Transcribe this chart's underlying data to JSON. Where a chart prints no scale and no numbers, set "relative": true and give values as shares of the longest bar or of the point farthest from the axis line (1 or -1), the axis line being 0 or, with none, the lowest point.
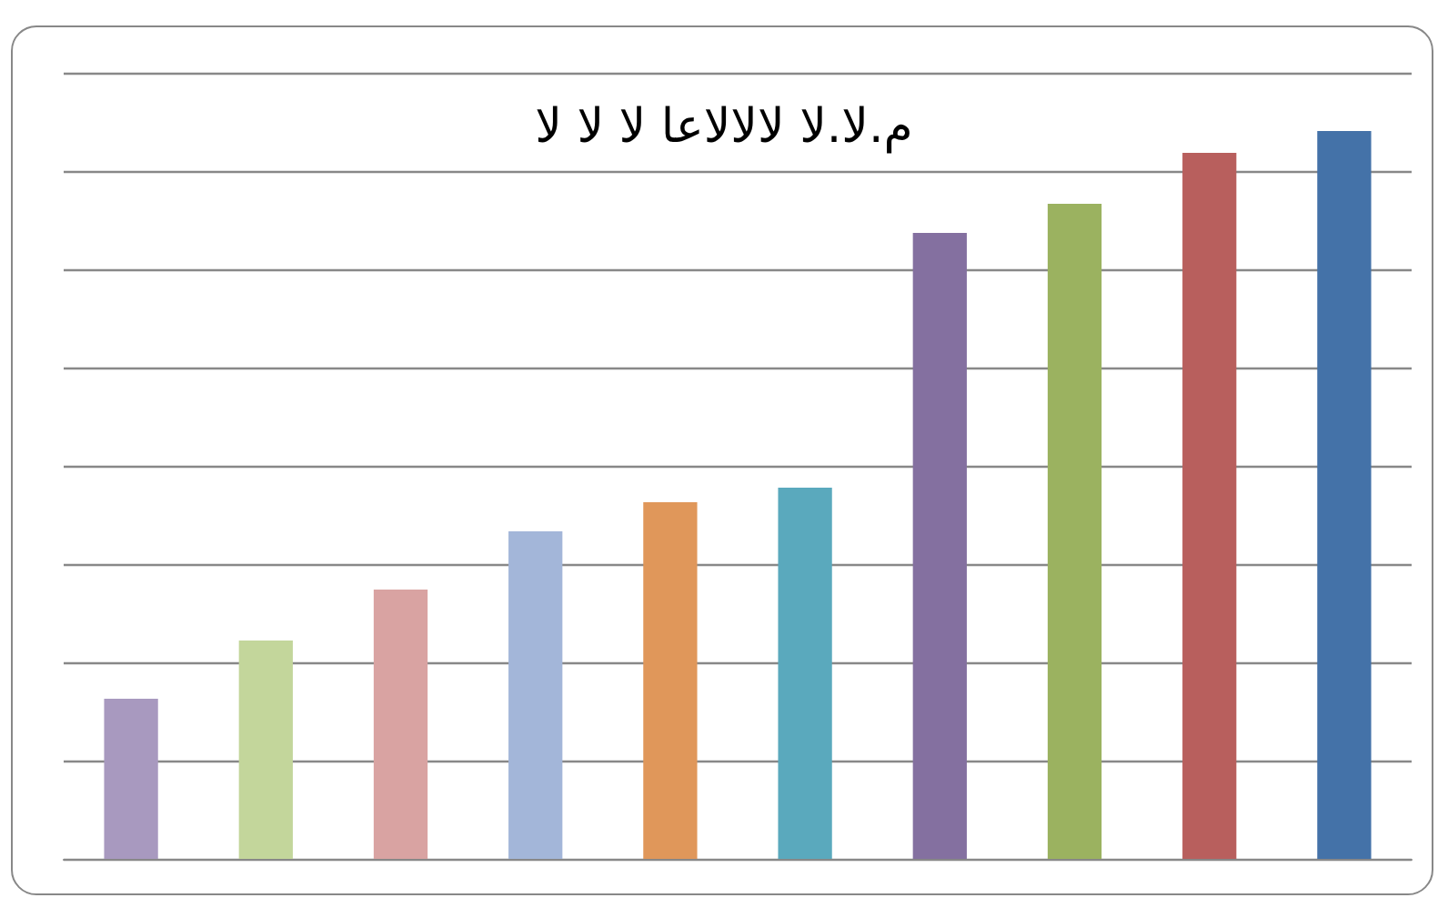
{
  "chart_data": {
    "type": "bar",
    "title": "م.لا.لا لالالاعا لا لا لا",
    "relative": true,
    "grid": "y",
    "categories": [
      null,
      null,
      null,
      null,
      null,
      null,
      null,
      null,
      null,
      null
    ],
    "values": [
      0.22,
      0.3,
      0.37,
      0.45,
      0.49,
      0.51,
      0.86,
      0.9,
      0.97,
      1
    ],
    "colors": [
      "#a899bf",
      "#c3d69b",
      "#d9a3a2",
      "#a3b6d9",
      "#e0975a",
      "#5aa9bd",
      "#8470a0",
      "#9bb260",
      "#b85f5d",
      "#4472a8"
    ]
  }
}
